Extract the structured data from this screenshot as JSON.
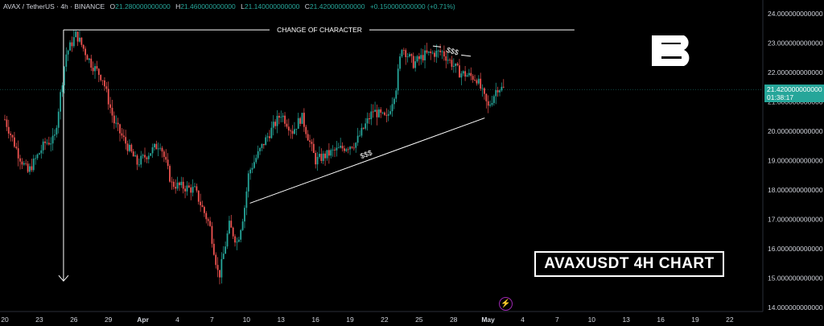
{
  "header": {
    "symbol": "AVAX / TetherUS · 4h · BINANCE",
    "o_label": "O",
    "o": "21.280000000000",
    "h_label": "H",
    "h": "21.460000000000",
    "l_label": "L",
    "l": "21.140000000000",
    "c_label": "C",
    "c": "21.420000000000",
    "change": "+0.150000000000 (+0.71%)"
  },
  "price_tag": {
    "price": "21.420000000000",
    "countdown": "01:38:17",
    "value": 21.42
  },
  "title_box": "AVAXUSDT 4H CHART",
  "colors": {
    "up": "#26a69a",
    "down": "#ef5350",
    "background": "#000000",
    "annotation": "#ffffff",
    "event": "#9c27b0"
  },
  "icons": {
    "logo": "b-logo",
    "event": "lightning-bolt-icon"
  },
  "chart_data": {
    "type": "candlestick",
    "title": "",
    "ylim": [
      13.8,
      24.2
    ],
    "y_ticks": [
      {
        "value": 24,
        "label": "24.000000000000"
      },
      {
        "value": 23,
        "label": "23.000000000000"
      },
      {
        "value": 22,
        "label": "22.000000000000"
      },
      {
        "value": 21,
        "label": "21.000000000000"
      },
      {
        "value": 20,
        "label": "20.000000000000"
      },
      {
        "value": 19,
        "label": "19.000000000000"
      },
      {
        "value": 18,
        "label": "18.000000000000"
      },
      {
        "value": 17,
        "label": "17.000000000000"
      },
      {
        "value": 16,
        "label": "16.000000000000"
      },
      {
        "value": 15,
        "label": "15.000000000000"
      },
      {
        "value": 14,
        "label": "14.000000000000"
      }
    ],
    "x_ticks": [
      {
        "label": "20",
        "day": 0
      },
      {
        "label": "23",
        "day": 3
      },
      {
        "label": "26",
        "day": 6
      },
      {
        "label": "29",
        "day": 9
      },
      {
        "label": "Apr",
        "day": 12
      },
      {
        "label": "4",
        "day": 15
      },
      {
        "label": "7",
        "day": 18
      },
      {
        "label": "10",
        "day": 21
      },
      {
        "label": "13",
        "day": 24
      },
      {
        "label": "16",
        "day": 27
      },
      {
        "label": "19",
        "day": 30
      },
      {
        "label": "22",
        "day": 33
      },
      {
        "label": "25",
        "day": 36
      },
      {
        "label": "28",
        "day": 39
      },
      {
        "label": "May",
        "day": 42
      },
      {
        "label": "4",
        "day": 45
      },
      {
        "label": "7",
        "day": 48
      },
      {
        "label": "10",
        "day": 51
      },
      {
        "label": "13",
        "day": 54
      },
      {
        "label": "16",
        "day": 57
      },
      {
        "label": "19",
        "day": 60
      },
      {
        "label": "22",
        "day": 63
      }
    ],
    "waypoints": [
      {
        "day": 0,
        "price": 20.4
      },
      {
        "day": 1.2,
        "price": 19.2
      },
      {
        "day": 2,
        "price": 18.6
      },
      {
        "day": 3.5,
        "price": 19.6
      },
      {
        "day": 4.3,
        "price": 19.7
      },
      {
        "day": 5.3,
        "price": 22.6
      },
      {
        "day": 6.2,
        "price": 23.3
      },
      {
        "day": 7.5,
        "price": 22.3
      },
      {
        "day": 8.5,
        "price": 21.8
      },
      {
        "day": 9.5,
        "price": 20.3
      },
      {
        "day": 11.5,
        "price": 18.9
      },
      {
        "day": 13.5,
        "price": 19.6
      },
      {
        "day": 14.5,
        "price": 18.2
      },
      {
        "day": 16.5,
        "price": 18.0
      },
      {
        "day": 17.8,
        "price": 16.8
      },
      {
        "day": 18.6,
        "price": 15.0
      },
      {
        "day": 19.5,
        "price": 16.8
      },
      {
        "day": 20.2,
        "price": 16.2
      },
      {
        "day": 20.8,
        "price": 17.3
      },
      {
        "day": 21.2,
        "price": 18.6
      },
      {
        "day": 22.5,
        "price": 19.6
      },
      {
        "day": 24,
        "price": 20.6
      },
      {
        "day": 25,
        "price": 20.0
      },
      {
        "day": 25.8,
        "price": 20.5
      },
      {
        "day": 27,
        "price": 19.0
      },
      {
        "day": 28.5,
        "price": 19.3
      },
      {
        "day": 30.5,
        "price": 19.6
      },
      {
        "day": 32,
        "price": 20.7
      },
      {
        "day": 33.2,
        "price": 20.4
      },
      {
        "day": 34,
        "price": 21.5
      },
      {
        "day": 34.5,
        "price": 22.9
      },
      {
        "day": 35.5,
        "price": 22.3
      },
      {
        "day": 36.5,
        "price": 22.6
      },
      {
        "day": 38,
        "price": 22.7
      },
      {
        "day": 39.5,
        "price": 22.0
      },
      {
        "day": 41,
        "price": 21.8
      },
      {
        "day": 42,
        "price": 20.8
      },
      {
        "day": 42.8,
        "price": 21.5
      },
      {
        "day": 43.5,
        "price": 21.42
      }
    ],
    "annotations": {
      "choch": {
        "label": "CHANGE OF CHARACTER",
        "day_start": 5.1,
        "day_end": 49.5,
        "price": 23.45,
        "arrow_to_price": 14.9
      },
      "trendline": {
        "label": "$$$",
        "day_start": 21.3,
        "price_start": 17.55,
        "day_end": 41.7,
        "price_end": 20.45
      },
      "top_liquidity": {
        "label": "$$$",
        "day_start": 37.2,
        "price_start": 22.9,
        "day_end": 40.5,
        "price_end": 22.55
      }
    }
  }
}
